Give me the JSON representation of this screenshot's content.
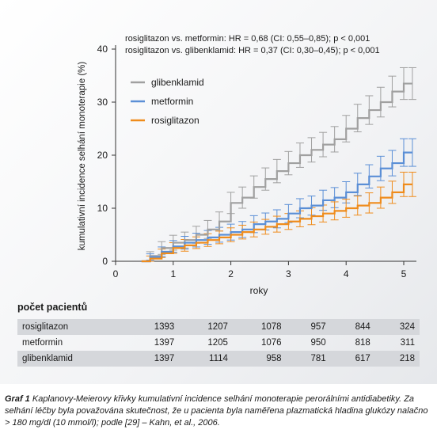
{
  "chart_data": {
    "type": "line",
    "step": true,
    "error_bars": true,
    "annotations": [
      "rosiglitazon vs. metformin: HR = 0,68 (CI: 0,55–0,85); p < 0,001",
      "rosiglitazon vs. glibenklamid: HR = 0,37 (CI: 0,30–0,45); p < 0,001"
    ],
    "xlabel": "roky",
    "ylabel": "kumulativní incidence selhání monoterapie (%)",
    "xlim": [
      0,
      5.3
    ],
    "ylim": [
      0,
      40
    ],
    "xticks": [
      0,
      1,
      2,
      3,
      4,
      5
    ],
    "yticks": [
      0,
      10,
      20,
      30,
      40
    ],
    "legend_position": "top-left",
    "series": [
      {
        "name": "glibenklamid",
        "color": "#a0a0a0",
        "x": [
          0.45,
          0.6,
          0.8,
          1.0,
          1.2,
          1.4,
          1.6,
          1.8,
          2.0,
          2.2,
          2.4,
          2.6,
          2.8,
          3.0,
          3.2,
          3.4,
          3.6,
          3.8,
          4.0,
          4.2,
          4.4,
          4.6,
          4.8,
          5.0,
          5.15
        ],
        "y": [
          0,
          1.0,
          2.5,
          3.5,
          4.0,
          5.0,
          6.0,
          7.5,
          11.0,
          12.0,
          14.0,
          15.5,
          17.0,
          18.5,
          20.0,
          21.0,
          22.0,
          23.0,
          25.0,
          27.0,
          28.5,
          30.0,
          32.0,
          33.5,
          33.5
        ],
        "err": [
          0,
          0.8,
          1.2,
          1.4,
          1.5,
          1.6,
          1.7,
          1.8,
          2.0,
          2.0,
          2.1,
          2.1,
          2.2,
          2.2,
          2.3,
          2.3,
          2.3,
          2.4,
          2.5,
          2.6,
          2.7,
          2.8,
          2.9,
          3.0,
          3.0
        ]
      },
      {
        "name": "metformin",
        "color": "#5b8fd6",
        "x": [
          0.45,
          0.6,
          0.8,
          1.0,
          1.2,
          1.4,
          1.6,
          1.8,
          2.0,
          2.2,
          2.4,
          2.6,
          2.8,
          3.0,
          3.2,
          3.4,
          3.6,
          3.8,
          4.0,
          4.2,
          4.4,
          4.6,
          4.8,
          5.0,
          5.15
        ],
        "y": [
          0,
          0.8,
          1.8,
          2.8,
          3.5,
          4.0,
          4.5,
          5.0,
          5.5,
          6.0,
          7.0,
          7.5,
          8.0,
          9.0,
          10.0,
          10.5,
          11.5,
          12.0,
          13.0,
          14.5,
          16.0,
          17.5,
          18.5,
          20.5,
          20.5
        ],
        "err": [
          0,
          0.6,
          0.9,
          1.1,
          1.2,
          1.3,
          1.3,
          1.4,
          1.5,
          1.5,
          1.6,
          1.6,
          1.7,
          1.7,
          1.8,
          1.8,
          1.9,
          1.9,
          2.0,
          2.1,
          2.2,
          2.3,
          2.4,
          2.6,
          2.6
        ]
      },
      {
        "name": "rosiglitazon",
        "color": "#ef8c1c",
        "x": [
          0.45,
          0.6,
          0.8,
          1.0,
          1.2,
          1.4,
          1.6,
          1.8,
          2.0,
          2.2,
          2.4,
          2.6,
          2.8,
          3.0,
          3.2,
          3.4,
          3.6,
          3.8,
          4.0,
          4.2,
          4.4,
          4.6,
          4.8,
          5.0,
          5.15
        ],
        "y": [
          0,
          0.5,
          1.5,
          2.5,
          3.0,
          3.5,
          4.0,
          4.5,
          5.0,
          5.5,
          6.0,
          6.5,
          7.0,
          7.5,
          8.0,
          8.5,
          9.0,
          9.5,
          10.0,
          10.5,
          11.0,
          12.0,
          13.0,
          14.5,
          14.5
        ],
        "err": [
          0,
          0.5,
          0.8,
          1.0,
          1.1,
          1.1,
          1.2,
          1.2,
          1.3,
          1.3,
          1.4,
          1.4,
          1.5,
          1.5,
          1.5,
          1.6,
          1.6,
          1.7,
          1.7,
          1.8,
          1.9,
          2.0,
          2.1,
          2.3,
          2.3
        ]
      }
    ]
  },
  "table": {
    "title": "počet pacientů",
    "rows": [
      {
        "label": "rosiglitazon",
        "values": [
          "1393",
          "1207",
          "1078",
          "957",
          "844",
          "324"
        ]
      },
      {
        "label": "metformin",
        "values": [
          "1397",
          "1205",
          "1076",
          "950",
          "818",
          "311"
        ]
      },
      {
        "label": "glibenklamid",
        "values": [
          "1397",
          "1114",
          "958",
          "781",
          "617",
          "218"
        ]
      }
    ]
  },
  "caption": {
    "lead": "Graf 1",
    "text": "Kaplanovy-Meierovy křivky kumulativní incidence selhání monoterapie perorálními antidiabetiky. Za selhání léčby byla považována skutečnost, že u pacienta byla naměřena plazmatická hladina glukózy nalačno > 180 mg/dl (10 mmol/l); podle [29] – Kahn, et al., 2006."
  }
}
